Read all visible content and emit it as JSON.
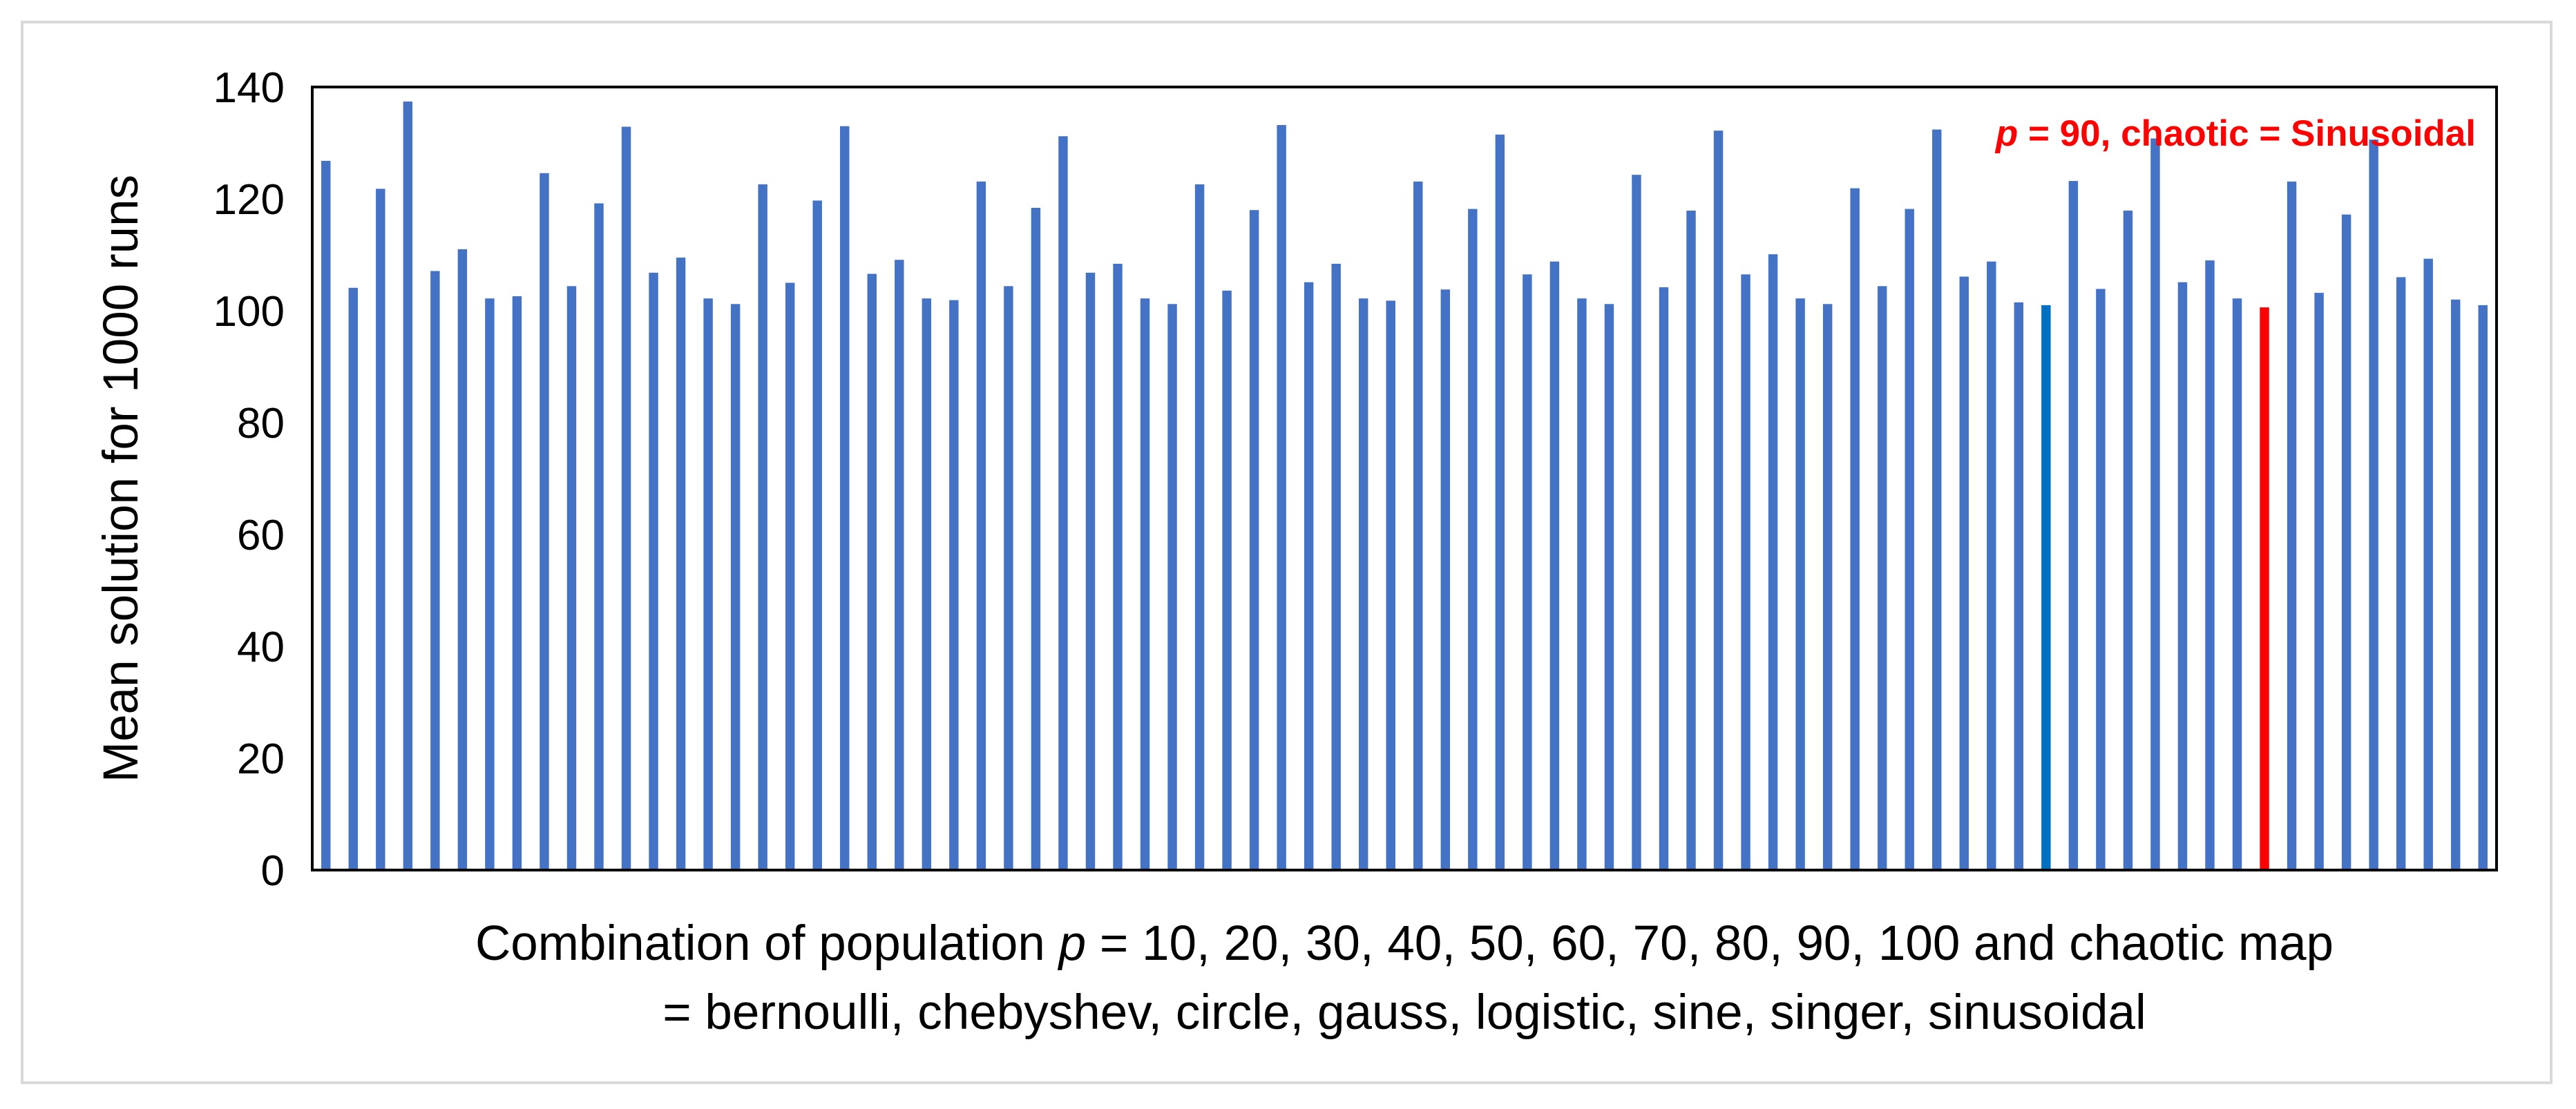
{
  "chart_data": {
    "type": "bar",
    "title": "",
    "ylabel": "Mean solution for 1000 runs",
    "xlabel_line1_pre": "Combination of population ",
    "xlabel_line1_var": "p",
    "xlabel_line1_post": " = 10, 20, 30, 40, 50, 60, 70, 80, 90, 100 and chaotic map",
    "xlabel_line2": "= bernoulli, chebyshev, circle, gauss, logistic, sine, singer, sinusoidal",
    "ylim": [
      0,
      140
    ],
    "yticks": [
      "0",
      "20",
      "40",
      "60",
      "80",
      "100",
      "120",
      "140"
    ],
    "grid": false,
    "values": [
      126.8,
      104.1,
      121.8,
      137.4,
      107.1,
      111.0,
      102.2,
      102.6,
      124.6,
      104.4,
      119.2,
      132.9,
      106.8,
      109.5,
      102.2,
      101.2,
      122.6,
      105.0,
      119.7,
      133.0,
      106.6,
      109.1,
      102.2,
      101.9,
      123.1,
      104.4,
      118.4,
      131.2,
      106.8,
      108.4,
      102.2,
      101.2,
      122.6,
      103.6,
      118.0,
      133.2,
      105.1,
      108.4,
      102.2,
      101.8,
      123.1,
      103.8,
      118.2,
      131.5,
      106.5,
      108.8,
      102.2,
      101.2,
      124.3,
      104.2,
      117.9,
      132.2,
      106.5,
      110.1,
      102.2,
      101.2,
      121.9,
      104.4,
      118.2,
      132.4,
      106.1,
      108.8,
      101.5,
      101.0,
      123.2,
      103.9,
      117.9,
      130.8,
      105.1,
      109.0,
      102.2,
      100.6,
      123.1,
      103.2,
      117.2,
      130.6,
      106.0,
      109.3,
      102.0,
      101.0
    ],
    "colors": {
      "default": "#4472c4",
      "highlight_teal": "#0070c0",
      "highlight_red": "#ff0000",
      "axis": "#000000",
      "annotation": "#ff0000"
    },
    "highlight_teal_index": 63,
    "highlight_red_index": 71,
    "annotation": {
      "var": "p",
      "text": " = 90, chaotic = Sinusoidal",
      "placement": "top-right"
    }
  }
}
